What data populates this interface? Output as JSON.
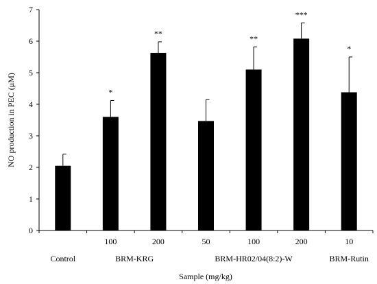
{
  "chart_data": {
    "type": "bar",
    "title": "",
    "xlabel": "Sample (mg/kg)",
    "ylabel": "NO production in PEC (μM)",
    "ylim": [
      0,
      7
    ],
    "yticks": [
      0,
      1,
      2,
      3,
      4,
      5,
      6,
      7
    ],
    "grid": false,
    "bar_color": "#000000",
    "bars": [
      {
        "dose": "",
        "value": 2.05,
        "error": 0.37,
        "sig": ""
      },
      {
        "dose": "100",
        "value": 3.6,
        "error": 0.52,
        "sig": "*"
      },
      {
        "dose": "200",
        "value": 5.63,
        "error": 0.35,
        "sig": "**"
      },
      {
        "dose": "50",
        "value": 3.47,
        "error": 0.68,
        "sig": ""
      },
      {
        "dose": "100",
        "value": 5.1,
        "error": 0.72,
        "sig": "**"
      },
      {
        "dose": "200",
        "value": 6.08,
        "error": 0.5,
        "sig": "***"
      },
      {
        "dose": "10",
        "value": 4.38,
        "error": 1.12,
        "sig": "*"
      }
    ],
    "groups": [
      {
        "label": "Control",
        "bars": [
          0
        ]
      },
      {
        "label": "BRM-KRG",
        "bars": [
          1,
          2
        ]
      },
      {
        "label": "BRM-HR02/04(8:2)-W",
        "bars": [
          3,
          4,
          5
        ]
      },
      {
        "label": "BRM-Rutin",
        "bars": [
          6
        ]
      }
    ]
  }
}
